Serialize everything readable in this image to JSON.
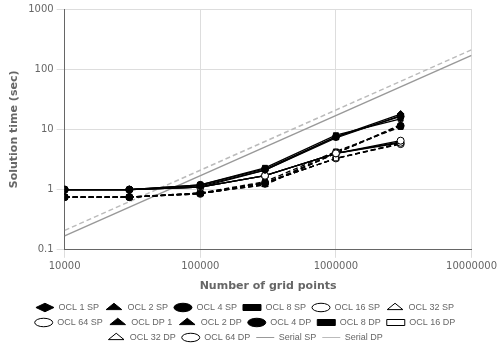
{
  "chart_data": {
    "type": "line",
    "xlabel": "Number of grid points",
    "ylabel": "Solution time (sec)",
    "x": [
      10000,
      30000,
      100000,
      300000,
      1000000,
      3000000
    ],
    "series": [
      {
        "name": "OCL 1 SP",
        "color": "black",
        "marker": "diamond",
        "line_style": "solid",
        "values": [
          1.0,
          1.0,
          1.1,
          2.1,
          7.5,
          18.0
        ]
      },
      {
        "name": "OCL 2 SP",
        "color": "black",
        "marker": "triangle",
        "line_style": "solid",
        "values": [
          1.0,
          1.0,
          1.15,
          2.1,
          7.2,
          17.0
        ]
      },
      {
        "name": "OCL 4 SP",
        "color": "black",
        "marker": "circle",
        "line_style": "solid",
        "values": [
          1.0,
          1.0,
          1.2,
          2.2,
          7.5,
          16.5
        ]
      },
      {
        "name": "OCL 8 SP",
        "color": "black",
        "marker": "square",
        "line_style": "solid",
        "values": [
          1.0,
          1.0,
          1.2,
          2.3,
          8.0,
          15.0
        ]
      },
      {
        "name": "OCL 16 SP",
        "color": "black",
        "marker": "open_circle",
        "line_style": "solid",
        "values": [
          1.0,
          1.0,
          1.1,
          1.7,
          4.0,
          6.5
        ]
      },
      {
        "name": "OCL 32 SP",
        "color": "black",
        "marker": "open_triangle",
        "line_style": "solid",
        "values": [
          1.0,
          1.0,
          1.1,
          1.7,
          4.0,
          6.2
        ]
      },
      {
        "name": "OCL 64 SP",
        "color": "black",
        "marker": "open_circle",
        "line_style": "solid",
        "values": [
          1.0,
          1.0,
          1.1,
          1.7,
          4.0,
          6.0
        ]
      },
      {
        "name": "OCL DP 1",
        "color": "black",
        "marker": "triangle",
        "line_style": "dashed",
        "values": [
          0.75,
          0.75,
          0.87,
          1.2,
          4.0,
          12.0
        ]
      },
      {
        "name": "OCL 2 DP",
        "color": "black",
        "marker": "triangle",
        "line_style": "dashed",
        "values": [
          0.75,
          0.75,
          0.87,
          1.2,
          4.0,
          11.5
        ]
      },
      {
        "name": "OCL 4 DP",
        "color": "black",
        "marker": "circle",
        "line_style": "dashed",
        "values": [
          0.75,
          0.75,
          0.88,
          1.25,
          4.1,
          11.5
        ]
      },
      {
        "name": "OCL 8 DP",
        "color": "black",
        "marker": "square",
        "line_style": "dashed",
        "values": [
          0.75,
          0.75,
          0.88,
          1.35,
          4.3,
          11.0
        ]
      },
      {
        "name": "OCL 16 DP",
        "color": "black",
        "marker": "open_square",
        "line_style": "dashed",
        "values": [
          0.75,
          0.75,
          0.85,
          1.3,
          3.3,
          5.9
        ]
      },
      {
        "name": "OCL 32 DP",
        "color": "black",
        "marker": "open_triangle",
        "line_style": "dashed",
        "values": [
          0.75,
          0.75,
          0.85,
          1.3,
          3.3,
          5.8
        ]
      },
      {
        "name": "OCL 64 DP",
        "color": "black",
        "marker": "open_circle",
        "line_style": "dashed",
        "values": [
          0.75,
          0.75,
          0.85,
          1.3,
          3.3,
          5.7
        ]
      },
      {
        "name": "Serial SP",
        "color": "#999999",
        "line_style": "solid",
        "x": [
          10000,
          10000000
        ],
        "values": [
          0.17,
          170
        ]
      },
      {
        "name": "Serial DP",
        "color": "#bbbbbb",
        "line_style": "dashed",
        "x": [
          10000,
          10000000
        ],
        "values": [
          0.21,
          210
        ]
      }
    ],
    "log": true,
    "xlim": [
      10000,
      10000000
    ],
    "ylim": [
      0.1,
      1000
    ],
    "xticks": [
      10000,
      100000,
      1000000,
      10000000
    ],
    "yticks": [
      0.1,
      1,
      10,
      100,
      1000
    ],
    "grid": true,
    "legend": "bottom"
  }
}
